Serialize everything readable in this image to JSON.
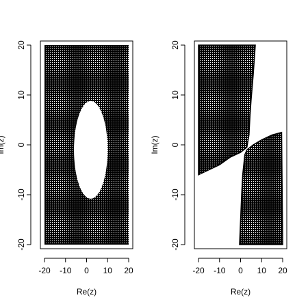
{
  "chart_data": [
    {
      "type": "scatter",
      "xlabel": "Re(z)",
      "ylabel": "Im(z)",
      "xlim": [
        -20,
        20
      ],
      "ylim": [
        -20,
        20
      ],
      "xticks": [
        -20,
        -10,
        0,
        10,
        20
      ],
      "yticks": [
        -20,
        -10,
        0,
        10,
        20
      ],
      "grid": false,
      "point_color": "#000000",
      "region": {
        "description_source": "filled rectangle [-20,20]x[-20,20] with an elliptical hole",
        "hole_center": [
          2,
          -1
        ],
        "hole_semi_axes": [
          8,
          9.8
        ]
      }
    },
    {
      "type": "scatter",
      "xlabel": "Re(z)",
      "ylabel": "Im(z)",
      "xlim": [
        -20,
        20
      ],
      "ylim": [
        -20,
        20
      ],
      "xticks": [
        -20,
        -10,
        0,
        10,
        20
      ],
      "yticks": [
        -20,
        -10,
        0,
        10,
        20
      ],
      "grid": false,
      "point_color": "#000000",
      "upper_region_right_boundary": [
        [
          -20,
          -6
        ],
        [
          -10,
          -4
        ],
        [
          -5,
          -2.5
        ],
        [
          0,
          -1.5
        ],
        [
          3,
          -0.5
        ],
        [
          4,
          2
        ],
        [
          4.5,
          6
        ],
        [
          5,
          9
        ],
        [
          6,
          14
        ],
        [
          7,
          20
        ]
      ],
      "lower_region_left_boundary": [
        [
          -0.5,
          -20
        ],
        [
          0,
          -15
        ],
        [
          0.5,
          -10
        ],
        [
          1,
          -6
        ],
        [
          2,
          -2
        ],
        [
          3,
          -1
        ],
        [
          6,
          0
        ],
        [
          10,
          1
        ],
        [
          15,
          2
        ],
        [
          19.5,
          2.5
        ]
      ]
    }
  ]
}
